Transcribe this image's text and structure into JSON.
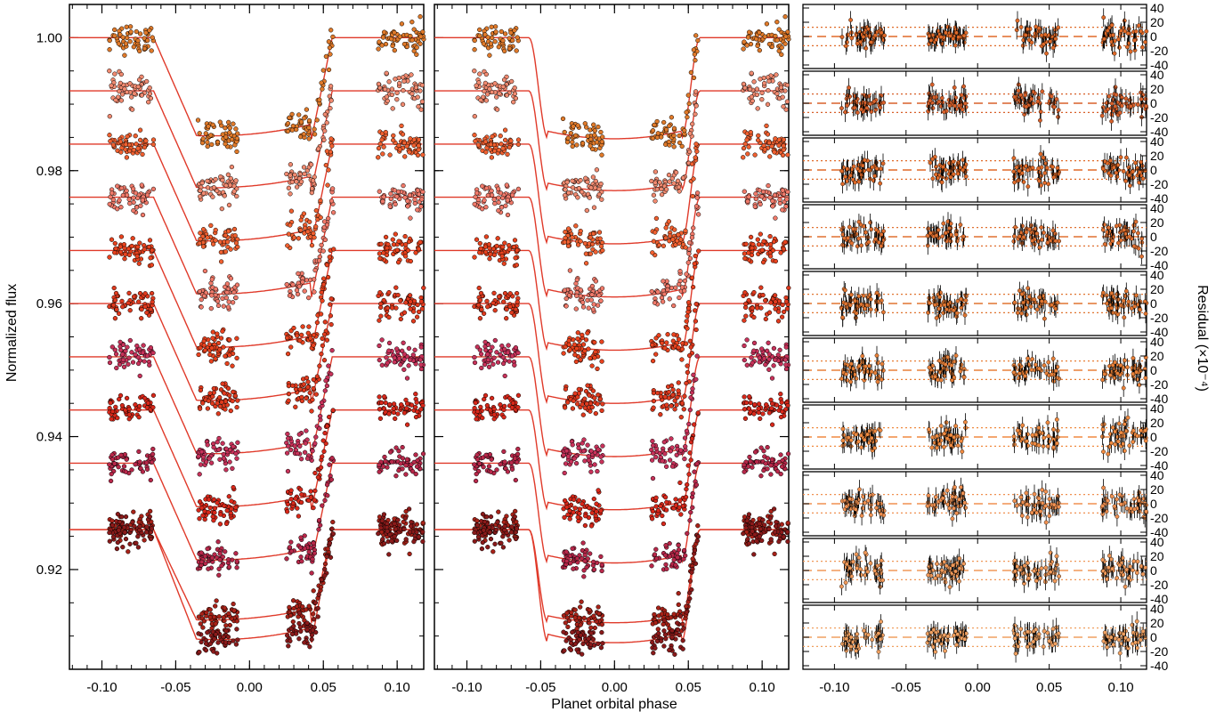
{
  "figure": {
    "xlabel": "Planet orbital phase",
    "ylabel_left": "Normalized flux",
    "ylabel_right": "Residual (×10⁻⁴)"
  },
  "chart_data": [
    {
      "type": "scatter",
      "panel": "left",
      "xlabel": "",
      "ylabel": "Normalized flux",
      "xlim": [
        -0.122,
        0.118
      ],
      "ylim": [
        0.905,
        1.005
      ],
      "xticks": [
        "-0.10",
        "-0.05",
        "0.00",
        "0.05",
        "0.10"
      ],
      "xtick_values": [
        -0.1,
        -0.05,
        0.0,
        0.05,
        0.1
      ],
      "yticks": [
        "0.92",
        "0.94",
        "0.96",
        "0.98",
        "1.00"
      ],
      "ytick_values": [
        0.92,
        0.94,
        0.96,
        0.98,
        1.0
      ],
      "model": "light curve with linear ingress/egress",
      "data_windows_phase": [
        [
          -0.095,
          -0.065
        ],
        [
          -0.035,
          -0.008
        ],
        [
          0.025,
          0.057
        ],
        [
          0.087,
          0.118
        ]
      ],
      "series": [
        {
          "baseline": 1.0,
          "depth": 0.0152,
          "color": "#e07a2a"
        },
        {
          "baseline": 0.992,
          "depth": 0.015,
          "color": "#f08a70"
        },
        {
          "baseline": 0.984,
          "depth": 0.015,
          "color": "#f06030"
        },
        {
          "baseline": 0.976,
          "depth": 0.015,
          "color": "#f07a6a"
        },
        {
          "baseline": 0.968,
          "depth": 0.015,
          "color": "#e8421e"
        },
        {
          "baseline": 0.96,
          "depth": 0.015,
          "color": "#e03a1e"
        },
        {
          "baseline": 0.952,
          "depth": 0.015,
          "color": "#c8325a"
        },
        {
          "baseline": 0.944,
          "depth": 0.015,
          "color": "#d8281a"
        },
        {
          "baseline": 0.936,
          "depth": 0.015,
          "color": "#b8284a"
        },
        {
          "baseline": 0.926,
          "depth": 0.014,
          "color": "#a82218"
        }
      ],
      "extra_series_below": [
        {
          "baseline": 0.926,
          "depth": 0.017,
          "color": "#8a1a1a"
        }
      ]
    },
    {
      "type": "scatter",
      "panel": "middle",
      "xlim": [
        -0.122,
        0.118
      ],
      "ylim": [
        0.905,
        1.005
      ],
      "xticks": [
        "-0.10",
        "-0.05",
        "0.00",
        "0.05",
        "0.10"
      ],
      "xtick_values": [
        -0.1,
        -0.05,
        0.0,
        0.05,
        0.1
      ],
      "model": "limb-darkened transit model",
      "contact_points_phase": [
        -0.058,
        -0.045,
        0.045,
        0.058
      ],
      "series_baselines": [
        1.0,
        0.992,
        0.984,
        0.976,
        0.968,
        0.96,
        0.952,
        0.944,
        0.936,
        0.926,
        0.926
      ],
      "series_depths": [
        0.0152,
        0.015,
        0.015,
        0.015,
        0.015,
        0.015,
        0.015,
        0.015,
        0.015,
        0.014,
        0.017
      ]
    },
    {
      "type": "scatter",
      "panel": "right",
      "ylabel": "Residual (×10⁻⁴)",
      "xlim": [
        -0.122,
        0.118
      ],
      "ylim": [
        -45,
        45
      ],
      "xticks": [
        "-0.10",
        "-0.05",
        "0.00",
        "0.05",
        "0.10"
      ],
      "xtick_values": [
        -0.1,
        -0.05,
        0.0,
        0.05,
        0.1
      ],
      "yticks": [
        "40",
        "20",
        "0",
        "-20",
        "-40"
      ],
      "ytick_values": [
        40,
        20,
        0,
        -20,
        -40
      ],
      "subplots": 10,
      "dashed_line": 0,
      "dotted_lines": [
        13,
        -13
      ],
      "residual_colors": [
        "#e06a28",
        "#d8602a",
        "#e06a28",
        "#e07030",
        "#e07530",
        "#e88038",
        "#f08a40",
        "#f09050",
        "#f09858",
        "#f0a060"
      ]
    }
  ],
  "colors": {
    "model_line": "#e03a2a",
    "marker_edge": "#000000",
    "residual_error_bar": "#000000"
  }
}
